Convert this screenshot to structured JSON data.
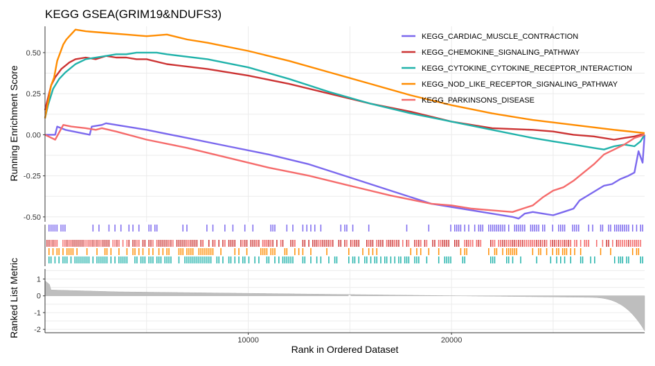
{
  "chart_data": {
    "type": "line",
    "title": "KEGG GSEA(GRIM19&NDUFS3)",
    "xlabel": "Rank in Ordered Dataset",
    "ylabel_top": "Running Enrichment Score",
    "ylabel_bottom": "Ranked List Metric",
    "xlim": [
      0,
      29500
    ],
    "x_ticks": [
      10000,
      20000
    ],
    "x_tick_labels": [
      "10000",
      "20000"
    ],
    "es_ylim": [
      -0.53,
      0.66
    ],
    "es_ticks": [
      0.5,
      0.25,
      0.0,
      -0.25,
      -0.5
    ],
    "es_tick_labels": [
      "0.50",
      "0.25",
      "0.00",
      "-0.25",
      "-0.50"
    ],
    "metric_ylim": [
      -2.2,
      1.6
    ],
    "metric_ticks": [
      1,
      0,
      -1,
      -2
    ],
    "metric_tick_labels": [
      "1",
      "0",
      "-1",
      "-2"
    ],
    "legend_position": "top-right",
    "grid": true,
    "series": [
      {
        "name": "KEGG_CARDIAC_MUSCLE_CONTRACTION",
        "color": "#7B68EE",
        "x": [
          0,
          500,
          600,
          1000,
          1400,
          2200,
          2300,
          2800,
          3000,
          5000,
          7000,
          9000,
          11000,
          13000,
          15000,
          17000,
          19000,
          21000,
          22000,
          23000,
          23300,
          23600,
          24000,
          24500,
          25000,
          25500,
          26000,
          26300,
          26700,
          27100,
          27500,
          27900,
          28300,
          28700,
          29000,
          29200,
          29400,
          29500
        ],
        "y": [
          0.0,
          0.0,
          0.05,
          0.03,
          0.02,
          0.0,
          0.05,
          0.06,
          0.07,
          0.03,
          -0.02,
          -0.07,
          -0.12,
          -0.18,
          -0.26,
          -0.34,
          -0.42,
          -0.46,
          -0.48,
          -0.5,
          -0.51,
          -0.48,
          -0.47,
          -0.48,
          -0.49,
          -0.47,
          -0.45,
          -0.4,
          -0.37,
          -0.34,
          -0.31,
          -0.3,
          -0.27,
          -0.25,
          -0.23,
          -0.1,
          -0.17,
          0.0
        ]
      },
      {
        "name": "KEGG_CHEMOKINE_SIGNALING_PATHWAY",
        "color": "#CC3333",
        "x": [
          0,
          100,
          300,
          500,
          800,
          1200,
          1500,
          2000,
          2500,
          3000,
          3500,
          4000,
          4500,
          5000,
          6000,
          8000,
          10000,
          12000,
          14000,
          16000,
          18000,
          20000,
          22000,
          24000,
          25000,
          26000,
          27000,
          28000,
          28500,
          29000,
          29300,
          29500
        ],
        "y": [
          0.15,
          0.2,
          0.3,
          0.35,
          0.4,
          0.44,
          0.46,
          0.47,
          0.46,
          0.48,
          0.47,
          0.47,
          0.46,
          0.46,
          0.43,
          0.4,
          0.36,
          0.31,
          0.25,
          0.19,
          0.14,
          0.08,
          0.04,
          0.03,
          0.02,
          0.0,
          -0.01,
          -0.03,
          -0.02,
          -0.01,
          0.0,
          0.0
        ]
      },
      {
        "name": "KEGG_CYTOKINE_CYTOKINE_RECEPTOR_INTERACTION",
        "color": "#20B2AA",
        "x": [
          0,
          150,
          400,
          700,
          1000,
          1500,
          2000,
          2500,
          3000,
          3500,
          4000,
          4500,
          5000,
          5500,
          6000,
          8000,
          10000,
          12000,
          14000,
          16000,
          18000,
          20000,
          22000,
          24000,
          25000,
          26000,
          27000,
          27500,
          28000,
          28500,
          29000,
          29300,
          29500
        ],
        "y": [
          0.1,
          0.18,
          0.28,
          0.34,
          0.38,
          0.43,
          0.46,
          0.47,
          0.48,
          0.49,
          0.49,
          0.5,
          0.5,
          0.5,
          0.49,
          0.46,
          0.41,
          0.34,
          0.26,
          0.19,
          0.13,
          0.08,
          0.03,
          -0.02,
          -0.04,
          -0.06,
          -0.08,
          -0.09,
          -0.07,
          -0.06,
          -0.07,
          -0.04,
          0.0
        ]
      },
      {
        "name": "KEGG_NOD_LIKE_RECEPTOR_SIGNALING_PATHWAY",
        "color": "#FF8C00",
        "x": [
          0,
          150,
          300,
          450,
          600,
          750,
          900,
          1050,
          1200,
          1350,
          1500,
          2000,
          3000,
          4000,
          5000,
          6000,
          7000,
          8000,
          10000,
          12000,
          14000,
          16000,
          18000,
          20000,
          22000,
          24000,
          26000,
          28000,
          29500
        ],
        "y": [
          0.1,
          0.2,
          0.3,
          0.35,
          0.45,
          0.5,
          0.55,
          0.58,
          0.6,
          0.62,
          0.64,
          0.63,
          0.62,
          0.61,
          0.6,
          0.61,
          0.58,
          0.56,
          0.51,
          0.45,
          0.38,
          0.31,
          0.24,
          0.18,
          0.13,
          0.09,
          0.06,
          0.03,
          0.01
        ]
      },
      {
        "name": "KEGG_PARKINSONS_DISEASE",
        "color": "#F56B6B",
        "x": [
          0,
          500,
          900,
          1300,
          2000,
          2500,
          2800,
          3500,
          5000,
          7000,
          9000,
          11000,
          13000,
          15000,
          17000,
          19000,
          20000,
          21000,
          22000,
          23000,
          23500,
          24000,
          24500,
          25000,
          25500,
          26000,
          26500,
          27000,
          27500,
          28000,
          28500,
          29000,
          29500
        ],
        "y": [
          0.0,
          -0.03,
          0.06,
          0.05,
          0.04,
          0.03,
          0.04,
          0.02,
          -0.03,
          -0.08,
          -0.14,
          -0.2,
          -0.25,
          -0.31,
          -0.37,
          -0.42,
          -0.43,
          -0.45,
          -0.46,
          -0.47,
          -0.45,
          -0.43,
          -0.38,
          -0.34,
          -0.32,
          -0.28,
          -0.23,
          -0.18,
          -0.12,
          -0.09,
          -0.06,
          -0.02,
          0.0
        ]
      }
    ]
  }
}
